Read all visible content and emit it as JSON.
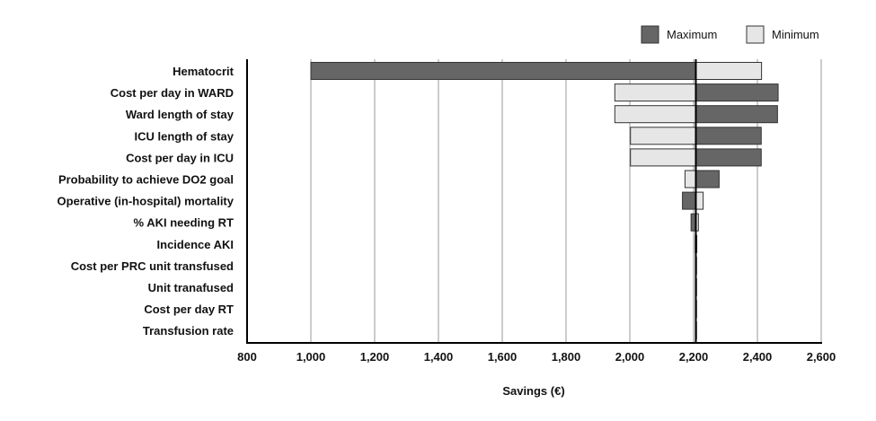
{
  "chart_data": {
    "type": "bar",
    "orientation": "horizontal",
    "subtype": "tornado",
    "title": "",
    "xlabel": "Savings (€)",
    "ylabel": "",
    "xlim": [
      800,
      2600
    ],
    "xticks": [
      800,
      1000,
      1200,
      1400,
      1600,
      1800,
      2000,
      2200,
      2400,
      2600
    ],
    "xtick_labels": [
      "800",
      "1,000",
      "1,200",
      "1,400",
      "1,600",
      "1,800",
      "2,000",
      "2,200",
      "2,400",
      "2,600"
    ],
    "baseline": 2207,
    "grid": true,
    "legend_position": "top-right",
    "categories": [
      "Hematocrit",
      "Cost per day in WARD",
      "Ward length of stay",
      "ICU length of stay",
      "Cost per day in ICU",
      "Probability to achieve DO2 goal",
      "Operative (in-hospital) mortality",
      "% AKI needing RT",
      "Incidence AKI",
      "Cost per PRC unit transfused",
      "Unit tranafused",
      "Cost per day RT",
      "Transfusion rate"
    ],
    "series": [
      {
        "name": "Maximum",
        "color": "#666666",
        "values": [
          1000,
          2465,
          2463,
          2412,
          2412,
          2280,
          2165,
          2192,
          2210,
          2208,
          2208,
          2208,
          2208
        ]
      },
      {
        "name": "Minimum",
        "color": "#e6e6e6",
        "values": [
          2413,
          1953,
          1953,
          2002,
          2002,
          2173,
          2230,
          2215,
          2205,
          2206,
          2206,
          2206,
          2206
        ]
      }
    ]
  }
}
